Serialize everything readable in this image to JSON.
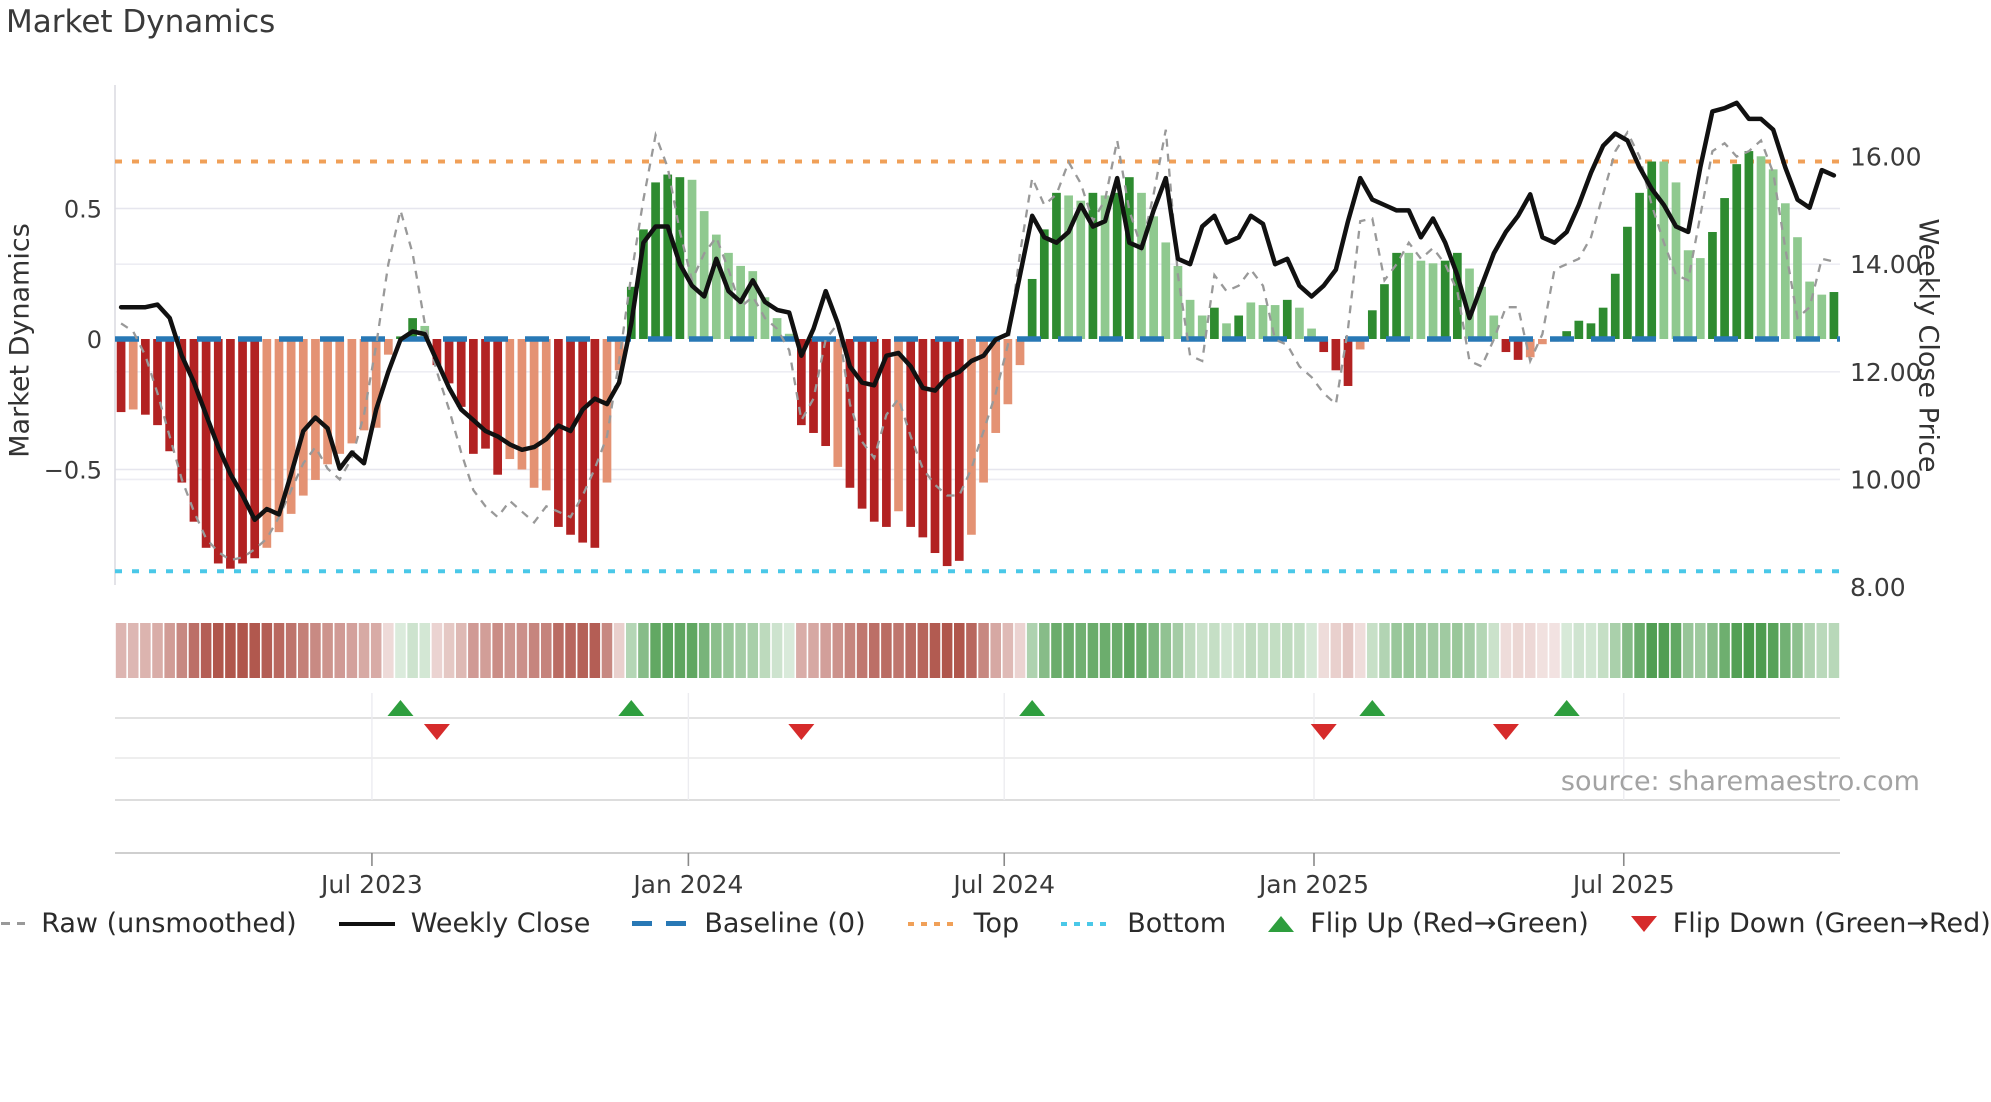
{
  "title": "Market Dynamics",
  "source_note": "source: sharemaestro.com",
  "left_axis": {
    "title": "Market Dynamics",
    "tick_labels": [
      "0.5",
      "0",
      "−0.5"
    ],
    "tick_values": [
      0.5,
      0,
      -0.5
    ]
  },
  "right_axis": {
    "title": "Weekly Close Price",
    "tick_labels": [
      "16.00",
      "14.00",
      "12.00",
      "10.00",
      "8.00"
    ],
    "tick_values": [
      16,
      14,
      12,
      10,
      8
    ]
  },
  "legend": {
    "items": [
      {
        "label": "Raw (unsmoothed)",
        "type": "dashed-line",
        "color": "#999999"
      },
      {
        "label": "Weekly Close",
        "type": "solid-line",
        "color": "#111111"
      },
      {
        "label": "Baseline (0)",
        "type": "dashed-line",
        "color": "#2878b5"
      },
      {
        "label": "Top",
        "type": "dotted-line",
        "color": "#f0a058"
      },
      {
        "label": "Bottom",
        "type": "dotted-line",
        "color": "#4ac8e8"
      },
      {
        "label": "Flip Up (Red→Green)",
        "type": "triangle-up",
        "color": "#2e9e3e"
      },
      {
        "label": "Flip Down (Green→Red)",
        "type": "triangle-down",
        "color": "#d62b2b"
      }
    ]
  },
  "chart_data": {
    "type": "bar",
    "title": "Market Dynamics",
    "ylabel_left": "Market Dynamics",
    "ylabel_right": "Weekly Close Price",
    "left_ylim": [
      -0.95,
      0.97
    ],
    "right_ylim": [
      8,
      17.35
    ],
    "baseline": 0,
    "top_threshold": 0.68,
    "bottom_threshold": -0.89,
    "x_ticks": [
      {
        "label": "Jul 2023",
        "week_pos": 21.15
      },
      {
        "label": "Jan 2024",
        "week_pos": 47.2
      },
      {
        "label": "Jul 2024",
        "week_pos": 73.2
      },
      {
        "label": "Jan 2025",
        "week_pos": 98.7
      },
      {
        "label": "Jul 2025",
        "week_pos": 124.2
      }
    ],
    "weeks": 142,
    "oscillator_values": [
      -0.28,
      -0.27,
      -0.29,
      -0.33,
      -0.43,
      -0.55,
      -0.7,
      -0.8,
      -0.86,
      -0.88,
      -0.86,
      -0.84,
      -0.8,
      -0.74,
      -0.67,
      -0.6,
      -0.54,
      -0.48,
      -0.44,
      -0.4,
      -0.35,
      -0.34,
      -0.06,
      0.01,
      0.08,
      0.05,
      -0.1,
      -0.17,
      -0.26,
      -0.44,
      -0.42,
      -0.52,
      -0.46,
      -0.5,
      -0.57,
      -0.58,
      -0.72,
      -0.75,
      -0.78,
      -0.8,
      -0.55,
      -0.12,
      0.2,
      0.42,
      0.6,
      0.63,
      0.62,
      0.61,
      0.49,
      0.4,
      0.33,
      0.28,
      0.26,
      0.16,
      0.08,
      0.02,
      -0.33,
      -0.36,
      -0.41,
      -0.49,
      -0.57,
      -0.65,
      -0.7,
      -0.72,
      -0.66,
      -0.72,
      -0.76,
      -0.82,
      -0.87,
      -0.85,
      -0.75,
      -0.55,
      -0.36,
      -0.25,
      -0.1,
      0.23,
      0.42,
      0.56,
      0.55,
      0.53,
      0.56,
      0.55,
      0.56,
      0.62,
      0.56,
      0.47,
      0.37,
      0.28,
      0.15,
      0.09,
      0.12,
      0.06,
      0.09,
      0.14,
      0.13,
      0.13,
      0.15,
      0.12,
      0.04,
      -0.05,
      -0.12,
      -0.18,
      -0.04,
      0.11,
      0.21,
      0.33,
      0.33,
      0.3,
      0.29,
      0.3,
      0.33,
      0.27,
      0.2,
      0.09,
      -0.05,
      -0.08,
      -0.07,
      -0.02,
      -0.01,
      0.03,
      0.07,
      0.06,
      0.12,
      0.25,
      0.43,
      0.56,
      0.68,
      0.68,
      0.6,
      0.34,
      0.31,
      0.41,
      0.54,
      0.67,
      0.72,
      0.7,
      0.65,
      0.52,
      0.39,
      0.22,
      0.17,
      0.18
    ],
    "oscillator_shades": "DLDDDDDDDDDDLLLLLLLLLLLDDLDDDDDDLLLLDDDDLLDDDDDLLLLLLLLLDDDLDDDDLDDDDDLLLLLDDDLLDLDDLLLLLLDLDLLLDLLDDDLDDDLLLDDLLLDDLLLDDDDDDDDLLLLDDDDLLLLLLD",
    "weekly_close": [
      13.2,
      13.2,
      13.2,
      13.25,
      13.0,
      12.3,
      11.8,
      11.2,
      10.6,
      10.1,
      9.7,
      9.25,
      9.45,
      9.35,
      10.1,
      10.9,
      11.15,
      10.95,
      10.2,
      10.5,
      10.3,
      11.3,
      12.0,
      12.6,
      12.75,
      12.7,
      12.2,
      11.7,
      11.3,
      11.1,
      10.9,
      10.8,
      10.65,
      10.55,
      10.6,
      10.75,
      11.0,
      10.9,
      11.3,
      11.5,
      11.4,
      11.8,
      12.9,
      14.4,
      14.7,
      14.7,
      14.0,
      13.6,
      13.4,
      14.1,
      13.5,
      13.3,
      13.7,
      13.3,
      13.15,
      13.1,
      12.3,
      12.8,
      13.5,
      12.9,
      12.1,
      11.8,
      11.75,
      12.3,
      12.35,
      12.1,
      11.7,
      11.65,
      11.9,
      12.0,
      12.2,
      12.3,
      12.6,
      12.7,
      13.8,
      14.9,
      14.5,
      14.4,
      14.6,
      15.1,
      14.7,
      14.8,
      15.6,
      14.4,
      14.3,
      15.0,
      15.6,
      14.1,
      14.0,
      14.7,
      14.9,
      14.4,
      14.5,
      14.9,
      14.75,
      14.0,
      14.1,
      13.6,
      13.4,
      13.6,
      13.9,
      14.8,
      15.6,
      15.2,
      15.1,
      15.0,
      15.0,
      14.5,
      14.85,
      14.4,
      13.8,
      13.0,
      13.6,
      14.2,
      14.6,
      14.9,
      15.3,
      14.5,
      14.4,
      14.6,
      15.1,
      15.7,
      16.2,
      16.43,
      16.3,
      15.8,
      15.4,
      15.1,
      14.7,
      14.6,
      15.8,
      16.84,
      16.9,
      17.0,
      16.7,
      16.7,
      16.5,
      15.8,
      15.2,
      15.05,
      15.75,
      15.65
    ],
    "raw_unsmoothed": [
      12.9,
      12.75,
      12.3,
      11.6,
      10.8,
      10.0,
      9.4,
      8.9,
      8.65,
      8.5,
      8.55,
      8.7,
      8.9,
      9.3,
      9.8,
      10.3,
      10.6,
      10.2,
      10.0,
      10.4,
      11.2,
      12.5,
      14.0,
      15.0,
      14.2,
      12.9,
      12.0,
      11.3,
      10.5,
      9.8,
      9.5,
      9.3,
      9.6,
      9.4,
      9.2,
      9.5,
      9.4,
      9.3,
      9.7,
      10.2,
      10.8,
      12.2,
      13.8,
      15.2,
      16.4,
      15.8,
      14.6,
      13.7,
      14.2,
      14.5,
      13.9,
      13.2,
      13.4,
      13.0,
      12.8,
      12.4,
      11.1,
      11.5,
      12.6,
      12.9,
      11.4,
      10.7,
      10.4,
      11.2,
      11.5,
      10.8,
      10.2,
      9.9,
      9.7,
      9.7,
      10.2,
      10.9,
      11.6,
      12.5,
      14.2,
      15.6,
      15.1,
      15.3,
      15.9,
      15.5,
      14.8,
      15.2,
      16.3,
      15.0,
      14.3,
      15.3,
      16.5,
      13.8,
      12.3,
      12.2,
      13.8,
      13.5,
      13.6,
      13.9,
      13.6,
      12.6,
      12.5,
      12.1,
      11.9,
      11.6,
      11.4,
      12.8,
      14.8,
      14.85,
      13.7,
      14.0,
      14.4,
      14.1,
      14.3,
      14.0,
      13.5,
      12.2,
      12.1,
      12.6,
      13.2,
      13.2,
      12.2,
      12.7,
      13.9,
      14.0,
      14.1,
      14.5,
      15.3,
      16.1,
      16.45,
      16.0,
      15.1,
      14.4,
      13.8,
      13.7,
      14.9,
      16.1,
      16.25,
      16.0,
      16.1,
      16.3,
      15.7,
      14.3,
      13.0,
      13.2,
      14.1,
      14.05
    ],
    "flip_up_weeks": [
      24,
      43,
      76,
      104,
      120
    ],
    "flip_down_weeks": [
      27,
      57,
      100,
      115
    ],
    "colors": {
      "bar_dark_red": "#b22222",
      "bar_light_red": "#e49273",
      "bar_dark_green": "#2e8b30",
      "bar_light_green": "#8fc98f",
      "baseline": "#2878b5",
      "top_line": "#f0a058",
      "bottom_line": "#4ac8e8",
      "raw_line": "#999999",
      "close_line": "#111111",
      "flip_up": "#2e9e3e",
      "flip_down": "#d62b2b",
      "heat_pos": "#2e8b30",
      "heat_neg": "#b0564c"
    },
    "legend_position": "bottom",
    "grid": true
  }
}
